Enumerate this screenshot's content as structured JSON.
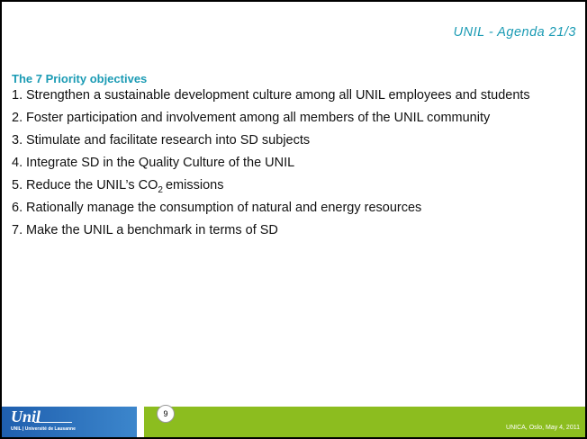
{
  "header": {
    "title": "UNIL - Agenda 21/3"
  },
  "slide": {
    "title": "The 7 Priority objectives",
    "items": [
      {
        "number": "1.",
        "text": "Strengthen a sustainable development culture among all UNIL employees and students"
      },
      {
        "number": "2.",
        "text": "Foster participation and involvement among all members of the UNIL community"
      },
      {
        "number": "3.",
        "text": "Stimulate and facilitate research into SD subjects"
      },
      {
        "number": "4.",
        "text": "Integrate SD in the Quality Culture of the UNIL"
      },
      {
        "number": "5.",
        "text": "Reduce the UNIL’s CO",
        "subscript": "2",
        "text_after": "emissions"
      },
      {
        "number": "6.",
        "text": "Rationally manage the consumption of natural and energy resources"
      },
      {
        "number": "7.",
        "text": "Make the UNIL a benchmark in terms of SD"
      }
    ]
  },
  "footer": {
    "logo": "Unil",
    "tagline": "UNIL | Université de Lausanne",
    "page": "9",
    "event": "UNICA, Oslo, May 4, 2011"
  }
}
